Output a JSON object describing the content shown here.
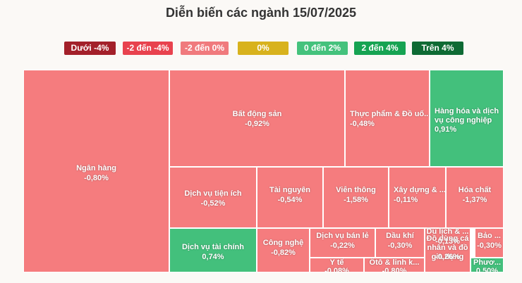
{
  "chart_data": {
    "type": "treemap",
    "title": "Diễn biến các ngành 15/07/2025",
    "legend": [
      {
        "label": "Dưới -4%",
        "color": "#a3202a"
      },
      {
        "label": "-2 đến -4%",
        "color": "#e8424e"
      },
      {
        "label": "-2 đến 0%",
        "color": "#f07a7d"
      },
      {
        "label": "0%",
        "color": "#d8b21d"
      },
      {
        "label": "0 đến 2%",
        "color": "#44c27c"
      },
      {
        "label": "2 đến 4%",
        "color": "#16a352"
      },
      {
        "label": "Trên 4%",
        "color": "#0e6a34"
      }
    ],
    "sectors": [
      {
        "name": "Ngân hàng",
        "value": "-0,80%",
        "color": "#f57c7e"
      },
      {
        "name": "Bất động sản",
        "value": "-0,92%",
        "color": "#f57c7e"
      },
      {
        "name": "Thực phẩm & Đồ uố...",
        "value": "-0,48%",
        "color": "#f57c7e"
      },
      {
        "name": "Hàng hóa và dịch vụ công nghiệp",
        "value": "0,91%",
        "color": "#43c07c"
      },
      {
        "name": "Dịch vụ tiện ích",
        "value": "-0,52%",
        "color": "#f57c7e"
      },
      {
        "name": "Tài nguyên",
        "value": "-0,54%",
        "color": "#f57c7e"
      },
      {
        "name": "Viễn thông",
        "value": "-1,58%",
        "color": "#f57c7e"
      },
      {
        "name": "Xây dựng & ...",
        "value": "-0,11%",
        "color": "#f57c7e"
      },
      {
        "name": "Hóa chất",
        "value": "-1,37%",
        "color": "#f57c7e"
      },
      {
        "name": "Dịch vụ tài chính",
        "value": "0,74%",
        "color": "#43c07c"
      },
      {
        "name": "Công nghệ",
        "value": "-0,82%",
        "color": "#f57c7e"
      },
      {
        "name": "Dịch vụ bán lẻ",
        "value": "-0,22%",
        "color": "#f57c7e"
      },
      {
        "name": "Dầu khí",
        "value": "-0,30%",
        "color": "#f57c7e"
      },
      {
        "name": "Đồ dùng cá nhân và đồ gia dụng",
        "value": "-0,26%",
        "color": "#f57c7e"
      },
      {
        "name": "Du lịch & ...",
        "value": "-0,13%",
        "color": "#f57c7e"
      },
      {
        "name": "Bảo ...",
        "value": "-0,30%",
        "color": "#f57c7e"
      },
      {
        "name": "Y tế",
        "value": "-0,08%",
        "color": "#f57c7e"
      },
      {
        "name": "Ôtô & linh k...",
        "value": "-0,80%",
        "color": "#f57c7e"
      },
      {
        "name": "Phươ...",
        "value": "0,50%",
        "color": "#43c07c"
      }
    ]
  }
}
